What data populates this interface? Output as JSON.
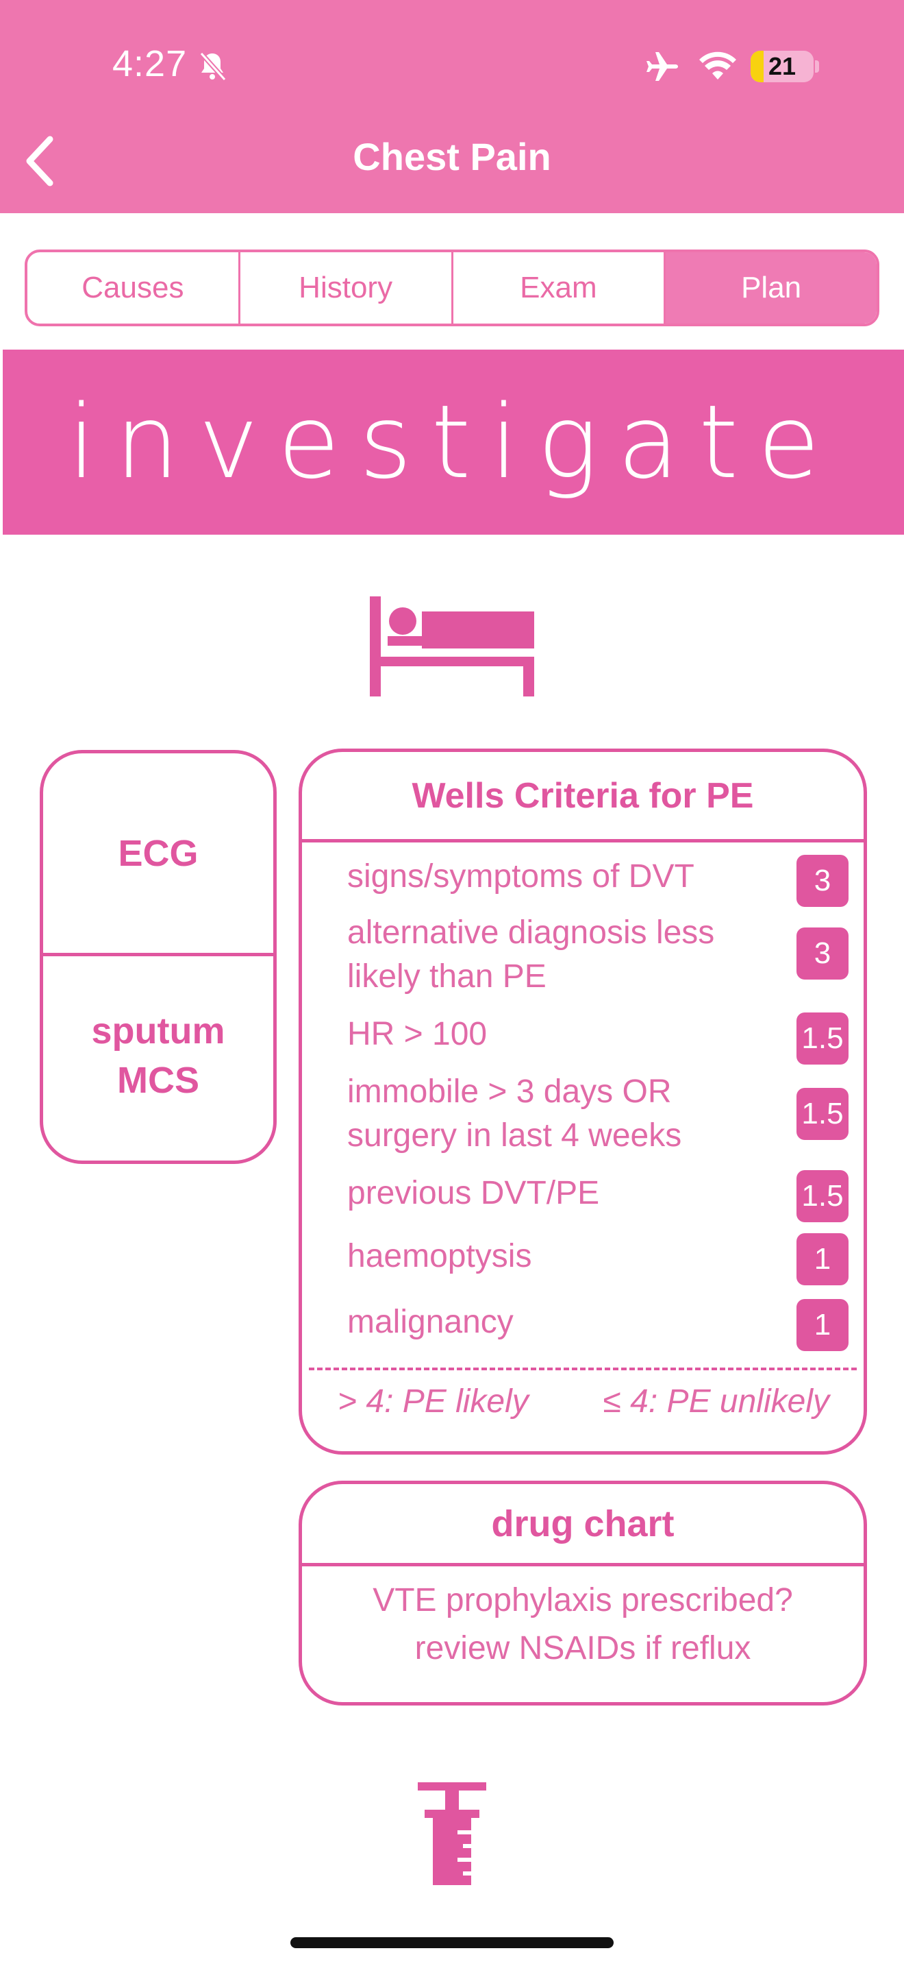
{
  "status_bar": {
    "time": "4:27",
    "battery_level": "21",
    "battery_fraction": 0.21,
    "icons": [
      "bell-slash-icon",
      "airplane-icon",
      "wifi-icon",
      "battery-icon"
    ]
  },
  "nav": {
    "title": "Chest Pain",
    "back_icon": "chevron-left-icon"
  },
  "tabs": [
    {
      "label": "Causes",
      "active": false
    },
    {
      "label": "History",
      "active": false
    },
    {
      "label": "Exam",
      "active": false
    },
    {
      "label": "Plan",
      "active": true
    }
  ],
  "banner": {
    "title": "investigate"
  },
  "icons": {
    "bed": "hospital-bed-icon",
    "syringe": "syringe-icon"
  },
  "left_card": {
    "items": [
      "ECG",
      "sputum MCS"
    ]
  },
  "wells": {
    "title": "Wells Criteria for PE",
    "items": [
      {
        "label": "signs/symptoms of DVT",
        "score": "3"
      },
      {
        "label": "alternative diagnosis less likely than PE",
        "score": "3"
      },
      {
        "label": "HR > 100",
        "score": "1.5"
      },
      {
        "label": "immobile > 3 days OR surgery in last 4 weeks",
        "score": "1.5"
      },
      {
        "label": "previous DVT/PE",
        "score": "1.5"
      },
      {
        "label": "haemoptysis",
        "score": "1"
      },
      {
        "label": "malignancy",
        "score": "1"
      }
    ],
    "footer_likely": "> 4: PE likely",
    "footer_unlikely": "≤ 4: PE unlikely"
  },
  "drug_chart": {
    "title": "drug chart",
    "line1": "VTE prophylaxis prescribed?",
    "line2": "review NSAIDs if reflux"
  },
  "colors": {
    "header": "#ee76af",
    "accent": "#e0569f",
    "banner": "#e85fa8",
    "active_tab": "#ef7bb4",
    "battery_fill": "#f8d20f"
  }
}
